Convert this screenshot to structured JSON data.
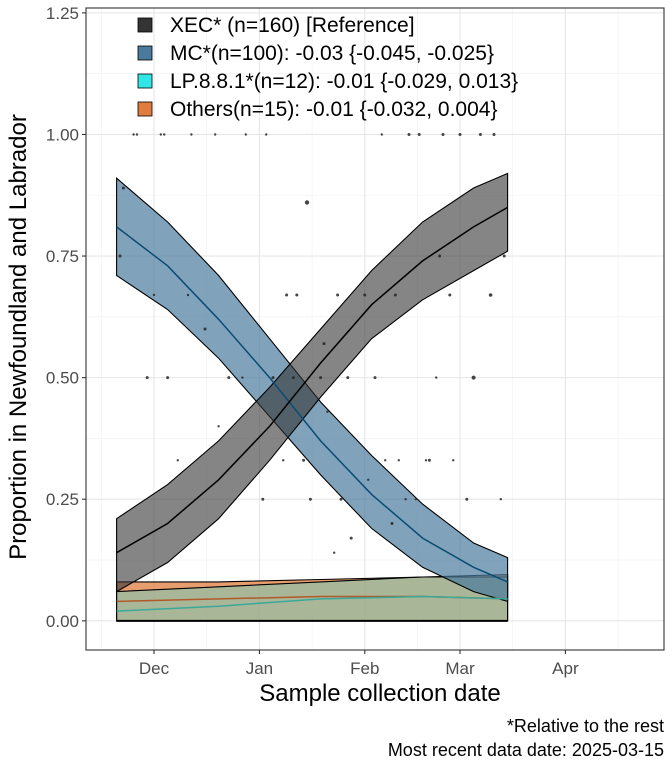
{
  "chart_data": {
    "type": "line",
    "xlabel": "Sample collection date",
    "ylabel": "Proportion in Newfoundland and Labrador",
    "x_tick_labels": [
      "Dec",
      "Jan",
      "Feb",
      "Mar",
      "Apr"
    ],
    "x_tick_dates": [
      "2024-12-01",
      "2025-01-01",
      "2025-02-01",
      "2025-03-01",
      "2025-04-01"
    ],
    "y_tick_labels": [
      "0.00",
      "0.25",
      "0.50",
      "0.75",
      "1.00",
      "1.25"
    ],
    "y_ticks": [
      0,
      0.25,
      0.5,
      0.75,
      1.0,
      1.25
    ],
    "xlim": [
      "2024-11-11",
      "2025-04-30"
    ],
    "ylim": [
      -0.06,
      1.26
    ],
    "grid": true,
    "legend_position": "top-left",
    "captions": [
      "*Relative to the rest",
      "Most recent data date: 2025-03-15"
    ],
    "series": [
      {
        "name": "XEC* (n=160)  [Reference]",
        "color": "#333333",
        "line_color": "#000000",
        "fill_opacity": 0.6,
        "x": [
          "2024-11-20",
          "2024-12-05",
          "2024-12-20",
          "2025-01-04",
          "2025-01-19",
          "2025-02-03",
          "2025-02-18",
          "2025-03-05",
          "2025-03-15"
        ],
        "y": [
          0.14,
          0.2,
          0.29,
          0.4,
          0.53,
          0.65,
          0.74,
          0.81,
          0.85
        ],
        "lower": [
          0.06,
          0.12,
          0.21,
          0.33,
          0.46,
          0.58,
          0.66,
          0.72,
          0.76
        ],
        "upper": [
          0.21,
          0.28,
          0.37,
          0.48,
          0.6,
          0.72,
          0.82,
          0.89,
          0.92
        ]
      },
      {
        "name": "MC*(n=100): -0.03 {-0.045, -0.025}",
        "color": "#4a7b9d",
        "line_color": "#0a4d73",
        "fill_opacity": 0.7,
        "x": [
          "2024-11-20",
          "2024-12-05",
          "2024-12-20",
          "2025-01-04",
          "2025-01-19",
          "2025-02-03",
          "2025-02-18",
          "2025-03-05",
          "2025-03-15"
        ],
        "y": [
          0.81,
          0.73,
          0.62,
          0.5,
          0.37,
          0.26,
          0.17,
          0.11,
          0.08
        ],
        "lower": [
          0.71,
          0.64,
          0.54,
          0.42,
          0.3,
          0.19,
          0.11,
          0.06,
          0.04
        ],
        "upper": [
          0.91,
          0.82,
          0.71,
          0.58,
          0.45,
          0.34,
          0.24,
          0.16,
          0.13
        ]
      },
      {
        "name": "LP.8.8.1*(n=12): -0.01 {-0.029, 0.013}",
        "color": "#33e6e6",
        "line_color": "#3aa89a",
        "fill_opacity": 0.35,
        "x": [
          "2024-11-20",
          "2024-12-20",
          "2025-01-19",
          "2025-02-18",
          "2025-03-15"
        ],
        "y": [
          0.02,
          0.03,
          0.045,
          0.05,
          0.045
        ],
        "lower": [
          0.0,
          0.0,
          0.0,
          0.0,
          0.0
        ],
        "upper": [
          0.06,
          0.07,
          0.08,
          0.09,
          0.09
        ]
      },
      {
        "name": "Others(n=15): -0.01 {-0.032, 0.004}",
        "color": "#e07c3e",
        "line_color": "#b05a2a",
        "fill_opacity": 0.75,
        "x": [
          "2024-11-20",
          "2024-12-20",
          "2025-01-19",
          "2025-02-18",
          "2025-03-15"
        ],
        "y": [
          0.04,
          0.045,
          0.05,
          0.05,
          0.045
        ],
        "lower": [
          0.0,
          0.0,
          0.0,
          0.0,
          0.0
        ],
        "upper": [
          0.08,
          0.08,
          0.085,
          0.09,
          0.095
        ]
      }
    ],
    "observations": {
      "x": [
        "2024-11-21",
        "2024-11-22",
        "2024-11-26",
        "2024-11-29",
        "2024-12-01",
        "2024-12-04",
        "2024-12-05",
        "2024-12-08",
        "2024-12-11",
        "2024-12-16",
        "2024-12-20",
        "2024-12-23",
        "2024-12-28",
        "2025-01-02",
        "2025-01-05",
        "2025-01-08",
        "2025-01-11",
        "2025-01-12",
        "2025-01-15",
        "2025-01-16",
        "2025-01-19",
        "2025-01-20",
        "2025-01-24",
        "2025-01-25",
        "2025-01-27",
        "2025-02-01",
        "2025-02-04",
        "2025-02-07",
        "2025-02-10",
        "2025-02-13",
        "2025-02-17",
        "2025-02-20",
        "2025-02-23",
        "2025-02-26",
        "2025-03-01",
        "2025-03-05",
        "2025-03-10",
        "2025-03-14",
        "2024-11-25",
        "2024-12-03",
        "2024-12-12",
        "2024-12-19",
        "2024-12-27",
        "2025-01-03",
        "2025-01-09",
        "2025-01-14",
        "2025-01-21",
        "2025-01-23",
        "2025-01-28",
        "2025-02-02",
        "2025-02-06",
        "2025-02-09",
        "2025-02-11",
        "2025-02-14",
        "2025-02-16",
        "2025-02-19",
        "2025-02-22",
        "2025-02-24",
        "2025-02-27",
        "2025-03-03",
        "2025-03-07",
        "2025-03-11",
        "2025-03-13"
      ],
      "y": [
        0.75,
        0.89,
        1.0,
        0.5,
        0.67,
        1.0,
        0.5,
        0.33,
        0.67,
        0.6,
        0.4,
        0.5,
        1.0,
        0.25,
        0.5,
        0.33,
        0.5,
        0.67,
        0.86,
        0.25,
        0.5,
        0.57,
        0.67,
        0.25,
        0.5,
        0.67,
        0.5,
        0.33,
        0.67,
        0.25,
        1.0,
        0.33,
        0.75,
        0.67,
        1.0,
        0.5,
        0.67,
        0.75,
        1.0,
        1.0,
        1.0,
        1.0,
        0.5,
        1.0,
        0.67,
        0.33,
        0.43,
        0.14,
        0.17,
        0.29,
        1.0,
        0.2,
        0.33,
        1.0,
        0.25,
        0.33,
        0.5,
        1.0,
        0.33,
        0.25,
        1.0,
        1.0,
        0.25
      ],
      "size": [
        1.5,
        1.5,
        1.2,
        1.5,
        1.2,
        1.2,
        1.5,
        1.2,
        1.2,
        1.5,
        1.2,
        1.5,
        1.2,
        1.5,
        1.5,
        1.2,
        1.5,
        1.5,
        2.2,
        1.5,
        1.5,
        1.5,
        1.5,
        1.5,
        1.5,
        1.5,
        1.5,
        1.2,
        1.5,
        1.2,
        1.5,
        1.5,
        1.5,
        1.5,
        1.5,
        2.0,
        1.8,
        1.5,
        1.2,
        1.2,
        1.2,
        1.2,
        1.2,
        1.2,
        1.5,
        1.5,
        1.2,
        1.2,
        1.5,
        1.2,
        1.2,
        1.5,
        1.2,
        1.5,
        1.2,
        1.2,
        1.2,
        1.5,
        1.2,
        1.5,
        1.5,
        1.5,
        1.2
      ]
    }
  }
}
